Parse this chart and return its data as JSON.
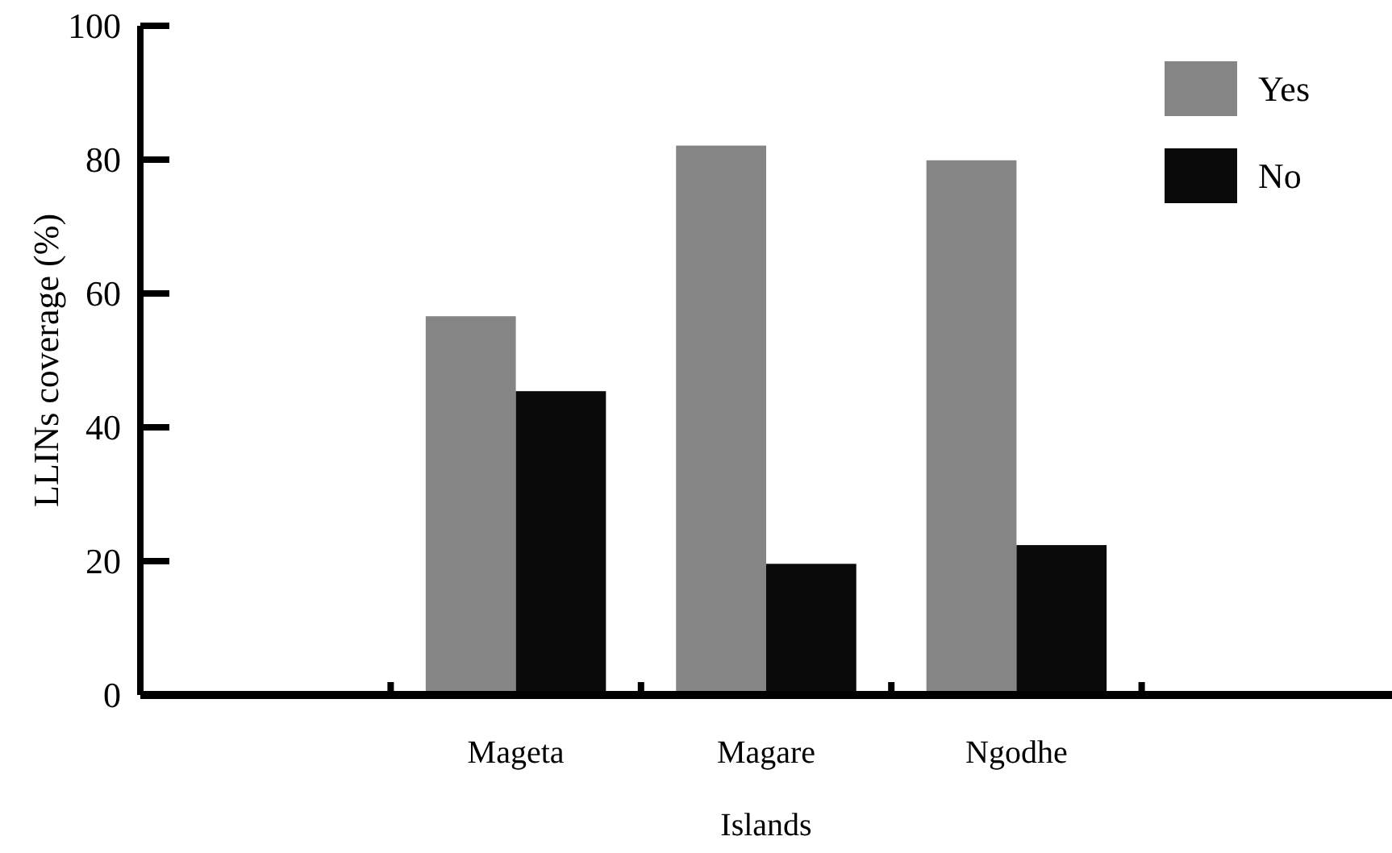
{
  "chart_data": {
    "type": "bar",
    "xlabel": "Islands",
    "ylabel": "LLINs coverage (%)",
    "categories": [
      null,
      "Mageta",
      "Magare",
      "Ngodhe",
      null
    ],
    "series": [
      {
        "name": "Yes",
        "color": "#858585",
        "values": [
          null,
          56.6,
          82.1,
          79.9,
          null
        ]
      },
      {
        "name": "No",
        "color": "#0a0a0a",
        "values": [
          null,
          45.4,
          19.6,
          22.4,
          null
        ]
      }
    ],
    "ylim": [
      0,
      100
    ],
    "yticks": [
      0,
      20,
      40,
      60,
      80,
      100
    ],
    "grid": false,
    "legend": "top right"
  }
}
